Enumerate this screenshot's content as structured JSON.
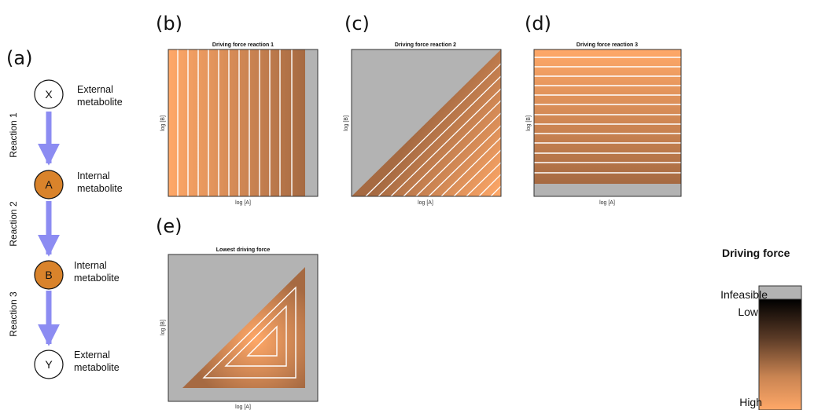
{
  "panels": {
    "a": {
      "letter": "(a)"
    },
    "b": {
      "letter": "(b)",
      "title": "Driving force reaction 1",
      "xlabel": "log [A]",
      "ylabel": "log [B]"
    },
    "c": {
      "letter": "(c)",
      "title": "Driving force reaction 2",
      "xlabel": "log [A]",
      "ylabel": "log [B]"
    },
    "d": {
      "letter": "(d)",
      "title": "Driving force reaction 3",
      "xlabel": "log [A]",
      "ylabel": "log [B]"
    },
    "e": {
      "letter": "(e)",
      "title": "Lowest driving force",
      "xlabel": "log [A]",
      "ylabel": "log [B]"
    }
  },
  "pathway": {
    "nodes": [
      {
        "id": "X",
        "label": "X",
        "desc1": "External",
        "desc2": "metabolite",
        "type": "external"
      },
      {
        "id": "A",
        "label": "A",
        "desc1": "Internal",
        "desc2": "metabolite",
        "type": "internal"
      },
      {
        "id": "B",
        "label": "B",
        "desc1": "Internal",
        "desc2": "metabolite",
        "type": "internal"
      },
      {
        "id": "Y",
        "label": "Y",
        "desc1": "External",
        "desc2": "metabolite",
        "type": "external"
      }
    ],
    "reactions": [
      "Reaction 1",
      "Reaction 2",
      "Reaction 3"
    ]
  },
  "colorbar": {
    "title": "Driving force",
    "infeasible": "Infeasible",
    "low": "Low",
    "high": "High"
  },
  "colors": {
    "external_node_fill": "#ffffff",
    "internal_node_fill": "#d9832b",
    "arrow": "#8c8cf2",
    "infeasible_gray": "#b3b3b3",
    "high_force": "#ffa868",
    "low_force": "#a66a42",
    "contour": "#ffffff"
  }
}
